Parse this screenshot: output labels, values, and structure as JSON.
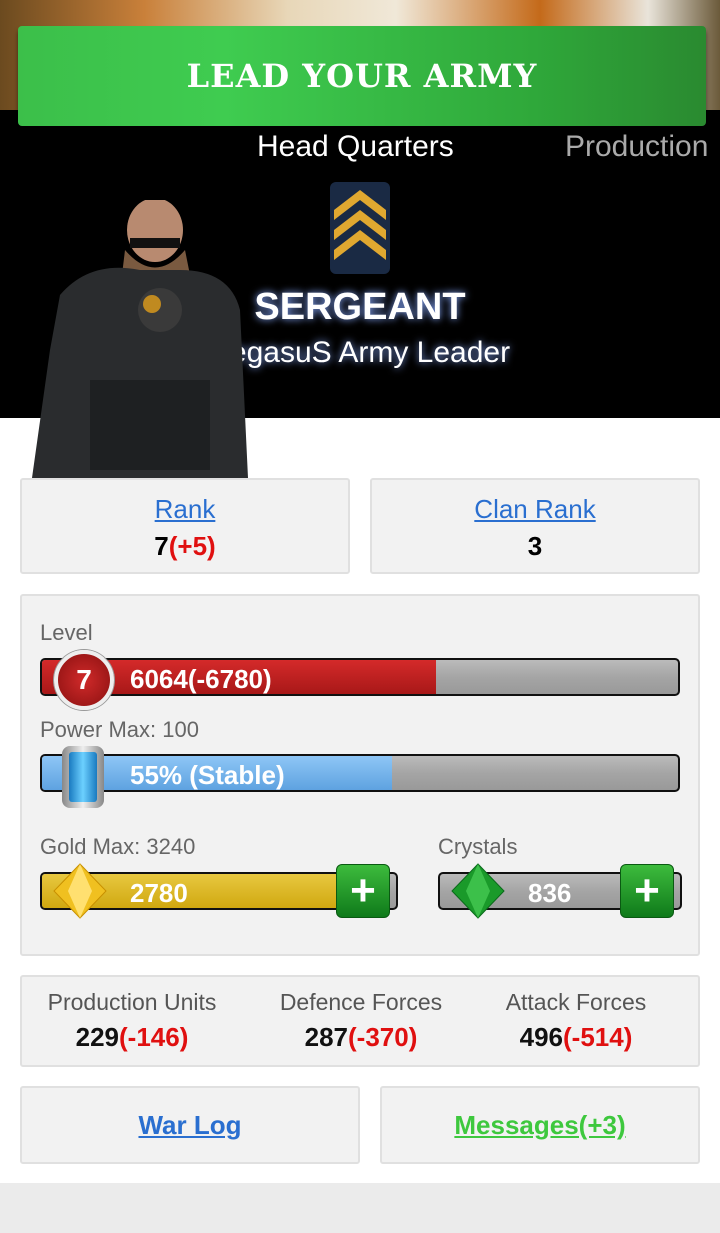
{
  "banner": {
    "title": "LEAD YOUR ARMY"
  },
  "tabs": [
    {
      "label": "Head Quarters",
      "active": true
    },
    {
      "label": "Production",
      "active": false
    }
  ],
  "profile": {
    "rank_title": "SERGEANT",
    "subtitle": "PegasuS Army Leader",
    "rank_icon": "sergeant-chevrons-icon"
  },
  "rank_card": {
    "label": "Rank",
    "value": "7",
    "delta": "(+5)"
  },
  "clan_card": {
    "label": "Clan Rank",
    "value": "3"
  },
  "level": {
    "label": "Level",
    "level": "7",
    "text": "6064(-6780)",
    "fill_percent": 62,
    "color": "#c62020"
  },
  "power": {
    "label": "Power Max: 100",
    "text": "55% (Stable)",
    "fill_percent": 55,
    "color": "#7ab8ee"
  },
  "gold": {
    "label": "Gold Max: 3240",
    "value": "2780",
    "fill_percent": 86,
    "color": "#e0b820",
    "add_icon": "plus-icon"
  },
  "crystals": {
    "label": "Crystals",
    "value": "836",
    "add_icon": "plus-icon"
  },
  "forces": [
    {
      "label": "Production Units",
      "value": "229",
      "delta": "(-146)"
    },
    {
      "label": "Defence Forces",
      "value": "287",
      "delta": "(-370)"
    },
    {
      "label": "Attack Forces",
      "value": "496",
      "delta": "(-514)"
    }
  ],
  "links": {
    "war_log": "War Log",
    "messages": "Messages(+3)",
    "messages_color": "#3ec83e"
  }
}
